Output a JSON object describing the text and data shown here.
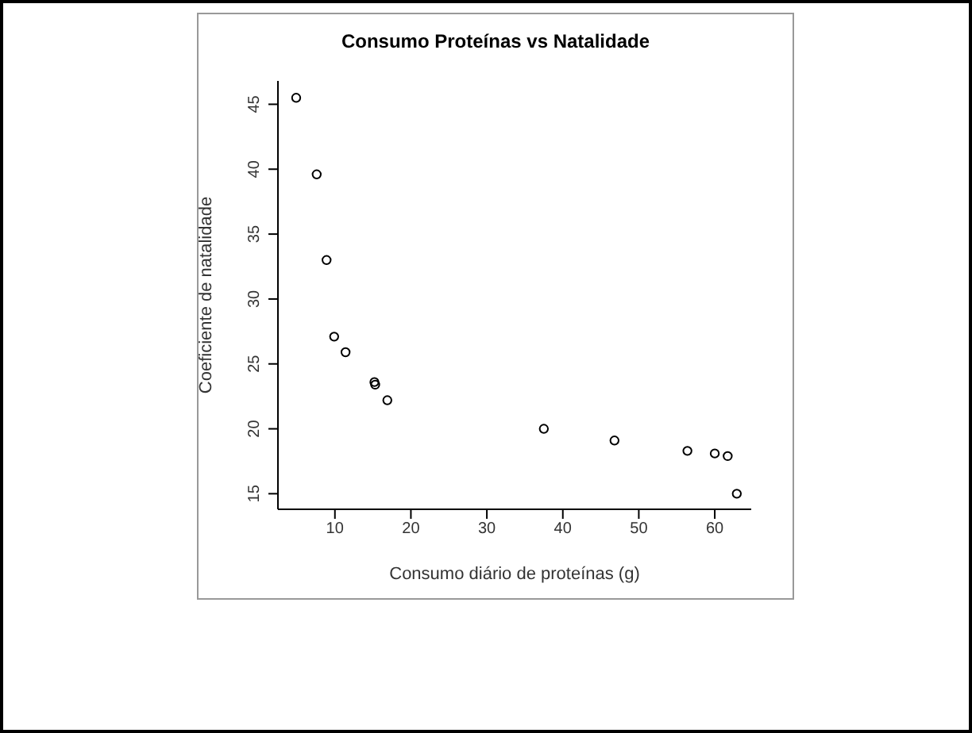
{
  "chart_data": {
    "type": "scatter",
    "title": "Consumo Proteínas vs Natalidade",
    "xlabel": "Consumo diário de proteínas (g)",
    "ylabel": "Coeficiente de natalidade",
    "series": [
      {
        "color": "#000000",
        "x": [
          4.9,
          7.6,
          8.9,
          9.9,
          11.4,
          15.2,
          15.3,
          16.9,
          37.5,
          46.8,
          56.4,
          60.0,
          61.7,
          62.9
        ],
        "values": [
          45.5,
          39.6,
          33.0,
          27.1,
          25.9,
          23.6,
          23.4,
          22.2,
          20.0,
          19.1,
          18.3,
          18.1,
          17.9,
          15.0
        ]
      }
    ],
    "xlim": [
      2.5,
      64.8
    ],
    "xticks": [
      10,
      20,
      30,
      40,
      50,
      60
    ],
    "ylim": [
      13.8,
      46.8
    ],
    "yticks": [
      15,
      20,
      25,
      30,
      35,
      40,
      45
    ],
    "marker": "circle",
    "grid": false,
    "legend": false
  }
}
